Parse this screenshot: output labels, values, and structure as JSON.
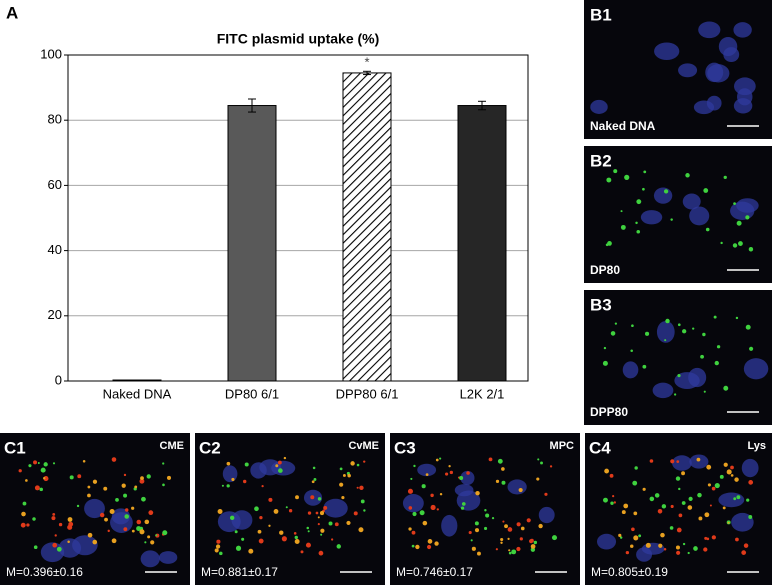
{
  "panel_label": "A",
  "chart_data": {
    "type": "bar",
    "title": "FITC plasmid uptake (%)",
    "categories": [
      "Naked DNA",
      "DP80 6/1",
      "DPP80 6/1",
      "L2K 2/1"
    ],
    "values": [
      0.3,
      84.5,
      94.5,
      84.5
    ],
    "errors": [
      null,
      2,
      0.5,
      1.3
    ],
    "colors": [
      "#7f7f7f",
      "#595959",
      "#ffffff",
      "#262626"
    ],
    "hatch": [
      false,
      false,
      true,
      false
    ],
    "annotation": {
      "text": "*",
      "category": "DPP80 6/1"
    },
    "ylim": [
      0,
      100
    ],
    "yticks": [
      0,
      20,
      40,
      60,
      80,
      100
    ],
    "grid": true
  },
  "b_panels": [
    {
      "label": "B1",
      "caption": "Naked DNA"
    },
    {
      "label": "B2",
      "caption": "DP80"
    },
    {
      "label": "B3",
      "caption": "DPP80"
    }
  ],
  "c_panels": [
    {
      "label": "C1",
      "tag": "CME",
      "caption": "M=0.396±0.16"
    },
    {
      "label": "C2",
      "tag": "CvME",
      "caption": "M=0.881±0.17"
    },
    {
      "label": "C3",
      "tag": "MPC",
      "caption": "M=0.746±0.17"
    },
    {
      "label": "C4",
      "tag": "Lys",
      "caption": "M=0.805±0.19"
    }
  ]
}
